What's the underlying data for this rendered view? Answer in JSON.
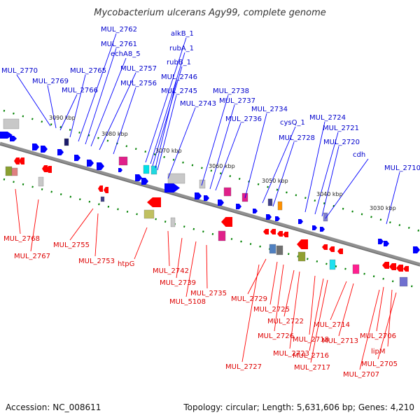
{
  "title": "Mycobacterium ulcerans Agy99, complete genome",
  "footer": {
    "accession": "Accession: NC_008611",
    "summary": "Topology: circular; Length: 5,631,606 bp; Genes: 4,210"
  },
  "colors": {
    "forward": "#0000ff",
    "reverse": "#ff0000",
    "backbone": "#888888",
    "tick": "#008000"
  },
  "scale_labels": [
    "3090 kbp",
    "3080 kbp",
    "3070 kbp",
    "3060 kbp",
    "3050 kbp",
    "3040 kbp",
    "3030 kbp"
  ],
  "top_labels": [
    "MUL_2770",
    "MUL_2769",
    "MUL_2766",
    "MUL_2765",
    "MUL_2762",
    "MUL_2761",
    "echA8_5",
    "MUL_2757",
    "MUL_2756",
    "alkB_1",
    "rubA_1",
    "rubB_1",
    "MUL_2746",
    "MUL_2745",
    "MUL_2743",
    "MUL_2738",
    "MUL_2737",
    "MUL_2736",
    "MUL_2734",
    "cysQ_1",
    "MUL_2728",
    "MUL_2724",
    "MUL_2721",
    "MUL_2720",
    "cdh",
    "MUL_2710"
  ],
  "bottom_labels": [
    "MUL_2768",
    "MUL_2767",
    "MUL_2755",
    "MUL_2753",
    "htpG",
    "MUL_2742",
    "MUL_2739",
    "MUL_5108",
    "MUL_2735",
    "MUL_2729",
    "MUL_2725",
    "MUL_2726",
    "MUL_2722",
    "MUL_2723",
    "MUL_2727",
    "MUL_2718",
    "MUL_2716",
    "MUL_2717",
    "MUL_2714",
    "MUL_2713",
    "MUL_2706",
    "lipM",
    "MUL_2705",
    "MUL_2707"
  ]
}
